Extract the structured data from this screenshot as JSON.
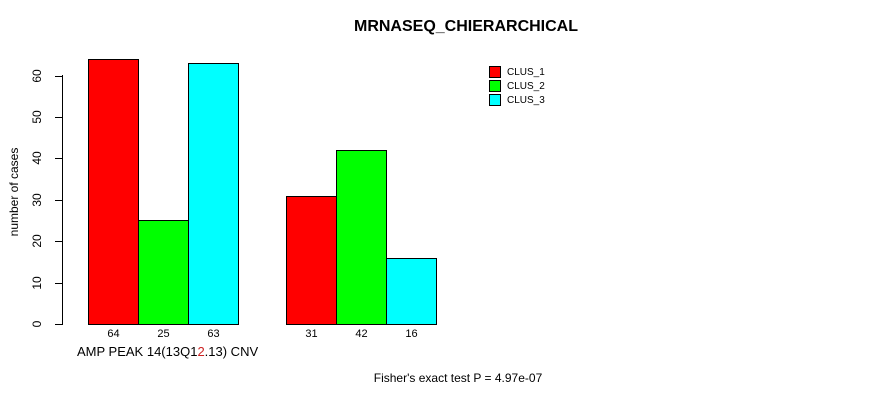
{
  "chart_data": {
    "type": "bar",
    "title": "MRNASEQ_CHIERARCHICAL",
    "ylabel": "number of cases",
    "xlabel_parts": {
      "before": "AMP PEAK 14(13Q1",
      "highlight": "2",
      "after": ".13) CNV"
    },
    "xlabel_highlight_color": "#cc2222",
    "annotation": "Fisher's exact test P = 4.97e-07",
    "yticks": [
      0,
      10,
      20,
      30,
      40,
      50,
      60
    ],
    "ylim": [
      0,
      64
    ],
    "n_groups": 2,
    "series": [
      {
        "name": "CLUS_1",
        "color": "#FF0000",
        "values": [
          64,
          31
        ]
      },
      {
        "name": "CLUS_2",
        "color": "#00FF00",
        "values": [
          25,
          42
        ]
      },
      {
        "name": "CLUS_3",
        "color": "#00FFFF",
        "values": [
          63,
          16
        ]
      }
    ],
    "legend_position": "top-right",
    "grid": false,
    "axis_color": "#000000",
    "background": "#FFFFFF"
  }
}
